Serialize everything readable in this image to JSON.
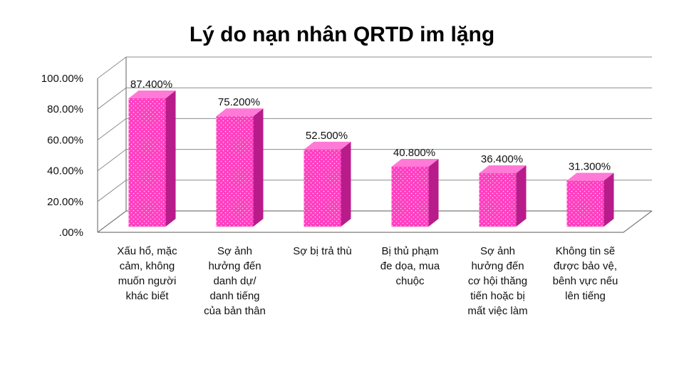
{
  "chart_data": {
    "type": "bar",
    "title": "Lý do nạn nhân QRTD im lặng",
    "xlabel": "",
    "ylabel": "",
    "ylim": [
      0,
      100
    ],
    "yticks": [
      ".00%",
      "20.00%",
      "40.00%",
      "60.00%",
      "80.00%",
      "100.00%"
    ],
    "categories": [
      [
        "Xấu hổ, mặc",
        "cảm, không",
        "muốn người",
        "khác biết"
      ],
      [
        "Sợ ảnh",
        "hưởng đến",
        "danh dự/",
        "danh tiếng",
        "của bản thân"
      ],
      [
        "Sợ bị trả thù"
      ],
      [
        "Bị thủ phạm",
        "đe dọa, mua",
        "chuộc"
      ],
      [
        "Sợ ảnh",
        "hưởng đến",
        "cơ hội thăng",
        "tiến hoặc bị",
        "mất việc làm"
      ],
      [
        "Không tin sẽ",
        "được bảo vệ,",
        "bênh vực nếu",
        "lên tiếng"
      ]
    ],
    "values": [
      87.4,
      75.2,
      52.5,
      40.8,
      36.4,
      31.3
    ],
    "data_labels": [
      "87.400%",
      "75.200%",
      "52.500%",
      "40.800%",
      "36.400%",
      "31.300%"
    ],
    "grid": true,
    "legend": "none",
    "colors": {
      "bar_front": "#ff3fc1",
      "bar_side": "#b81c8a",
      "bar_top": "#ff7ad6",
      "dot": "#ffd3f0"
    }
  }
}
